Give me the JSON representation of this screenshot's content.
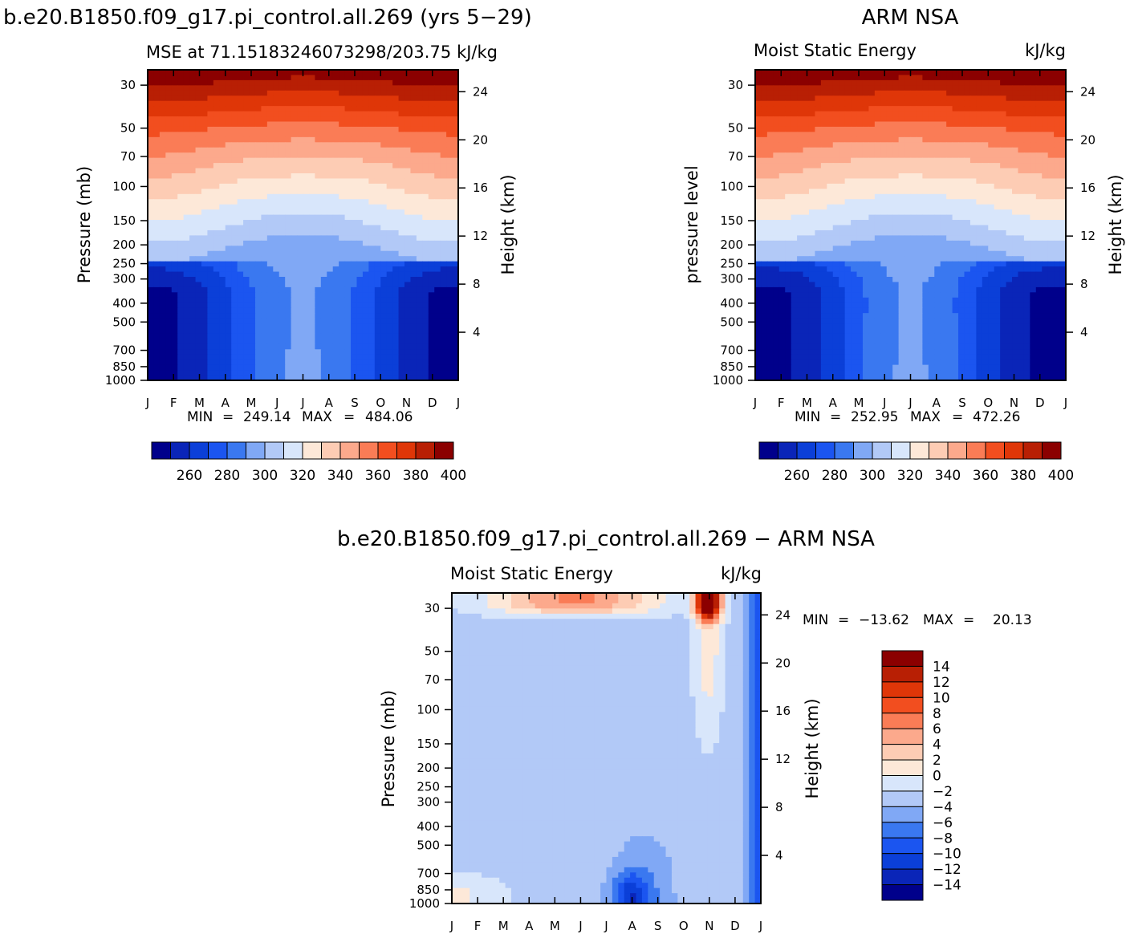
{
  "chart_data": [
    {
      "type": "heatmap",
      "panel": "model",
      "title": "b.e20.B1850.f09_g17.pi_control.all.269 (yrs 5−29)",
      "subtitle_left": "MSE at 71.15183246073298/203.75",
      "subtitle_right": "kJ/kg",
      "ylabel": "Pressure (mb)",
      "ylabel_right": "Height (km)",
      "x_ticks": [
        "J",
        "F",
        "M",
        "A",
        "M",
        "J",
        "J",
        "A",
        "S",
        "O",
        "N",
        "D",
        "J"
      ],
      "y_ticks": [
        "30",
        "50",
        "70",
        "100",
        "150",
        "200",
        "250",
        "300",
        "400",
        "500",
        "700",
        "850",
        "1000"
      ],
      "y_ticks_right": [
        "24",
        "20",
        "16",
        "12",
        "8",
        "4"
      ],
      "y_scale": "log",
      "ylim": [
        1000,
        25
      ],
      "min_label": "MIN",
      "max_label": "MAX",
      "min": "249.14",
      "max": "484.06",
      "colorbar_ticks": [
        "260",
        "280",
        "300",
        "320",
        "340",
        "360",
        "380",
        "400"
      ],
      "colorbar_levels": [
        250,
        260,
        270,
        280,
        290,
        300,
        310,
        320,
        330,
        340,
        350,
        360,
        370,
        380,
        390,
        400
      ]
    },
    {
      "type": "heatmap",
      "panel": "obs",
      "title": "ARM NSA",
      "subtitle_left": "Moist Static Energy",
      "subtitle_right": "kJ/kg",
      "ylabel": "pressure level",
      "ylabel_right": "Height (km)",
      "x_ticks": [
        "J",
        "F",
        "M",
        "A",
        "M",
        "J",
        "J",
        "A",
        "S",
        "O",
        "N",
        "D",
        "J"
      ],
      "y_ticks": [
        "30",
        "50",
        "70",
        "100",
        "150",
        "200",
        "250",
        "300",
        "400",
        "500",
        "700",
        "850",
        "1000"
      ],
      "y_ticks_right": [
        "24",
        "20",
        "16",
        "12",
        "8",
        "4"
      ],
      "y_scale": "log",
      "ylim": [
        1000,
        25
      ],
      "min_label": "MIN",
      "max_label": "MAX",
      "min": "252.95",
      "max": "472.26",
      "colorbar_ticks": [
        "260",
        "280",
        "300",
        "320",
        "340",
        "360",
        "380",
        "400"
      ],
      "colorbar_levels": [
        250,
        260,
        270,
        280,
        290,
        300,
        310,
        320,
        330,
        340,
        350,
        360,
        370,
        380,
        390,
        400
      ]
    },
    {
      "type": "heatmap",
      "panel": "difference",
      "title": "b.e20.B1850.f09_g17.pi_control.all.269 − ARM NSA",
      "subtitle_left": "Moist Static Energy",
      "subtitle_right": "kJ/kg",
      "ylabel": "Pressure (mb)",
      "ylabel_right": "Height (km)",
      "x_ticks": [
        "J",
        "F",
        "M",
        "A",
        "M",
        "J",
        "J",
        "A",
        "S",
        "O",
        "N",
        "D",
        "J"
      ],
      "y_ticks": [
        "30",
        "50",
        "70",
        "100",
        "150",
        "200",
        "250",
        "300",
        "400",
        "500",
        "700",
        "850",
        "1000"
      ],
      "y_ticks_right": [
        "24",
        "20",
        "16",
        "12",
        "8",
        "4"
      ],
      "y_scale": "log",
      "ylim": [
        1000,
        25
      ],
      "min_label": "MIN",
      "max_label": "MAX",
      "min": "−13.62",
      "max": "20.13",
      "colorbar_ticks": [
        "14",
        "12",
        "10",
        "8",
        "6",
        "4",
        "2",
        "0",
        "−2",
        "−4",
        "−6",
        "−8",
        "−10",
        "−12",
        "−14"
      ],
      "colorbar_levels": [
        -14,
        -12,
        -10,
        -8,
        -6,
        -4,
        -2,
        0,
        2,
        4,
        6,
        8,
        10,
        12,
        14
      ]
    }
  ],
  "colors": {
    "mse_palette": [
      "#00008b",
      "#0a25b8",
      "#0b3fd8",
      "#1b55f0",
      "#3a78f0",
      "#80a8f5",
      "#b2c9f7",
      "#d8e6fb",
      "#fde8d8",
      "#fdccb4",
      "#fca98c",
      "#fa7c56",
      "#f24e1f",
      "#df3608",
      "#b81f04",
      "#8b0000"
    ],
    "diff_palette": [
      "#00008b",
      "#0a25b8",
      "#0b3fd8",
      "#1b55f0",
      "#3a78f0",
      "#80a8f5",
      "#b2c9f7",
      "#d8e6fb",
      "#fde8d8",
      "#fdccb4",
      "#fca98c",
      "#fa7c56",
      "#f24e1f",
      "#df3608",
      "#b81f04",
      "#8b0000"
    ]
  }
}
